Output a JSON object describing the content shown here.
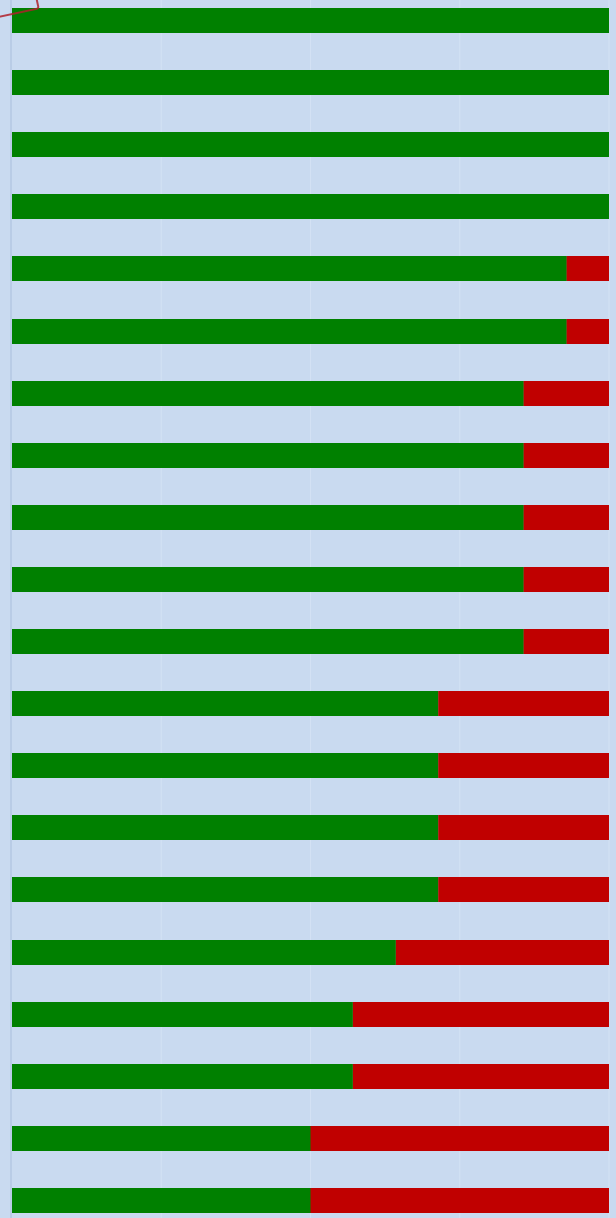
{
  "colors": {
    "background": "#c9daf0",
    "gridline": "#d3e1f4",
    "positive": "#008000",
    "negative": "#c00000"
  },
  "chart_data": {
    "type": "bar",
    "orientation": "horizontal",
    "stacked": true,
    "normalized_to": 1,
    "grid": true,
    "legend": "none",
    "categories": [
      "",
      "",
      "",
      "",
      "",
      "",
      "",
      "",
      "",
      "",
      "",
      "",
      "",
      "",
      "",
      "",
      "",
      "",
      "",
      ""
    ],
    "series": [
      {
        "color": "#008000",
        "values": [
          1.0,
          1.0,
          1.0,
          1.0,
          0.929,
          0.929,
          0.857,
          0.857,
          0.857,
          0.857,
          0.857,
          0.714,
          0.714,
          0.714,
          0.714,
          0.643,
          0.571,
          0.571,
          0.5,
          0.5
        ]
      },
      {
        "color": "#c00000",
        "values": [
          0.0,
          0.0,
          0.0,
          0.0,
          0.071,
          0.071,
          0.143,
          0.143,
          0.143,
          0.143,
          0.143,
          0.286,
          0.286,
          0.286,
          0.286,
          0.357,
          0.429,
          0.429,
          0.5,
          0.5
        ]
      }
    ]
  }
}
